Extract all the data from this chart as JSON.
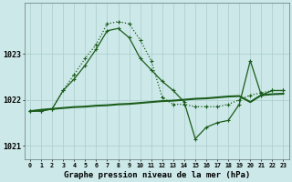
{
  "title": "Graphe pression niveau de la mer (hPa)",
  "background_color": "#cce8e8",
  "grid_color": "#aacccc",
  "line_color": "#1a5c1a",
  "ylim": [
    1020.7,
    1024.1
  ],
  "yticks": [
    1021,
    1022,
    1023
  ],
  "hours": [
    0,
    1,
    2,
    3,
    4,
    5,
    6,
    7,
    8,
    9,
    10,
    11,
    12,
    13,
    14,
    15,
    16,
    17,
    18,
    19,
    20,
    21,
    22,
    23
  ],
  "series_dotted": [
    1021.75,
    1021.75,
    1021.8,
    1022.2,
    1022.55,
    1022.9,
    1023.2,
    1023.65,
    1023.7,
    1023.65,
    1023.3,
    1022.85,
    1022.05,
    1021.9,
    1021.9,
    1021.85,
    1021.85,
    1021.85,
    1021.9,
    1022.0,
    1022.1,
    1022.15,
    1022.2,
    1022.2
  ],
  "series_solid": [
    1021.75,
    1021.75,
    1021.8,
    1022.2,
    1022.45,
    1022.75,
    1023.1,
    1023.5,
    1023.55,
    1023.35,
    1022.9,
    1022.65,
    1022.4,
    1022.2,
    1021.95,
    1021.15,
    1021.4,
    1021.5,
    1021.55,
    1021.9,
    1022.85,
    1022.1,
    1022.2,
    1022.2
  ],
  "series_trend": [
    1021.75,
    1021.78,
    1021.8,
    1021.82,
    1021.84,
    1021.85,
    1021.87,
    1021.88,
    1021.9,
    1021.91,
    1021.93,
    1021.95,
    1021.97,
    1021.98,
    1022.0,
    1022.02,
    1022.03,
    1022.05,
    1022.07,
    1022.08,
    1021.95,
    1022.1,
    1022.12,
    1022.13
  ]
}
